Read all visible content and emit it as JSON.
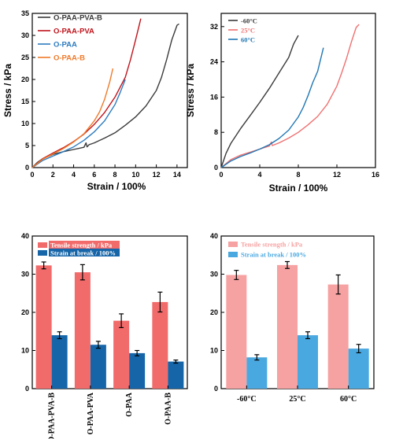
{
  "colors": {
    "black": "#3a3a3a",
    "red": "#c0141c",
    "blue": "#2d7cc0",
    "orange": "#ef7a2a",
    "cold": "#3a3a3a",
    "room": "#f07070",
    "warm": "#1f77b4",
    "bar_red": "#f26b6b",
    "bar_blue_dark": "#1565a8",
    "bar_red_light": "#f7a2a2",
    "bar_blue_light": "#4aa8e0"
  },
  "chart_data": [
    {
      "type": "line",
      "xlabel": "Strain / 100%",
      "ylabel": "Stress / kPa",
      "xlim": [
        0,
        15
      ],
      "ylim": [
        0,
        35
      ],
      "xticks": [
        "0",
        "2",
        "4",
        "6",
        "8",
        "10",
        "12",
        "14"
      ],
      "yticks": [
        "0",
        "5",
        "10",
        "15",
        "20",
        "25",
        "30",
        "35"
      ],
      "legend": "top-left",
      "series": [
        {
          "name": "O-PAA-PVA-B",
          "color": "black",
          "x": [
            0,
            0.5,
            1,
            2,
            3,
            4,
            5,
            5.2,
            5.3,
            5.5,
            6,
            7,
            8,
            9,
            10,
            11,
            12,
            12.5,
            13,
            13.5,
            14,
            14.2
          ],
          "y": [
            0,
            1.2,
            2.0,
            3.0,
            3.6,
            4.1,
            4.6,
            5.6,
            4.7,
            5.2,
            5.6,
            6.7,
            7.9,
            9.6,
            11.5,
            14.0,
            17.5,
            20.5,
            24.5,
            29.0,
            32.3,
            32.6
          ]
        },
        {
          "name": "O-PAA-PVA",
          "color": "red",
          "x": [
            0,
            1,
            2,
            3,
            4,
            5,
            6,
            7,
            8,
            9,
            9.5,
            10,
            10.5
          ],
          "y": [
            0,
            2.0,
            3.3,
            4.5,
            5.9,
            7.6,
            9.8,
            12.5,
            16.0,
            20.5,
            24.5,
            29.0,
            33.8
          ]
        },
        {
          "name": "O-PAA",
          "color": "blue",
          "x": [
            0,
            1,
            2,
            3,
            4,
            5,
            6,
            7,
            8,
            8.5,
            9
          ],
          "y": [
            0,
            1.6,
            2.6,
            3.6,
            4.7,
            6.2,
            8.1,
            10.6,
            14.3,
            17.0,
            20.0
          ]
        },
        {
          "name": "O-PAA-B",
          "color": "orange",
          "x": [
            0,
            1,
            2,
            3,
            4,
            5,
            6,
            6.5,
            7,
            7.5,
            7.8
          ],
          "y": [
            0,
            1.9,
            3.1,
            4.3,
            5.8,
            7.7,
            10.6,
            12.6,
            15.5,
            19.5,
            22.5
          ]
        }
      ]
    },
    {
      "type": "line",
      "xlabel": "Strain / 100%",
      "ylabel": "Stress / kPa",
      "xlim": [
        0,
        16
      ],
      "ylim": [
        0,
        35
      ],
      "xticks": [
        "0",
        "4",
        "8",
        "12",
        "16"
      ],
      "yticks": [
        "0",
        "8",
        "16",
        "24",
        "32"
      ],
      "legend": "top-left",
      "series": [
        {
          "name": "-60°C",
          "color": "cold",
          "x": [
            0,
            0.5,
            1,
            2,
            3,
            4,
            5,
            6,
            7,
            7.5,
            8
          ],
          "y": [
            0,
            3.2,
            5.5,
            8.8,
            11.8,
            14.8,
            18.0,
            21.5,
            25.0,
            28.0,
            30.0
          ]
        },
        {
          "name": "25°C",
          "color": "room",
          "x": [
            0,
            1,
            2,
            3,
            4,
            5,
            5.2,
            5.3,
            6,
            7,
            8,
            9,
            10,
            11,
            12,
            12.5,
            13,
            13.5,
            14,
            14.3
          ],
          "y": [
            0,
            1.8,
            2.8,
            3.5,
            4.2,
            4.9,
            5.8,
            5.0,
            5.6,
            6.7,
            8.0,
            9.7,
            11.6,
            14.4,
            18.5,
            21.5,
            24.8,
            28.5,
            31.8,
            32.5
          ]
        },
        {
          "name": "60°C",
          "color": "warm",
          "x": [
            0,
            1,
            2,
            3,
            4,
            5,
            6,
            7,
            8,
            8.5,
            9,
            9.5,
            10,
            10.3,
            10.6
          ],
          "y": [
            0,
            1.5,
            2.5,
            3.3,
            4.2,
            5.2,
            6.6,
            8.5,
            11.5,
            13.6,
            16.3,
            19.3,
            21.8,
            24.5,
            27.2
          ]
        }
      ]
    },
    {
      "type": "bar",
      "categories": [
        "O-PAA-PVA-B",
        "O-PAA-PVA",
        "O-PAA",
        "O-PAA-B"
      ],
      "ylim": [
        0,
        40
      ],
      "yticks": [
        "0",
        "10",
        "20",
        "30",
        "40"
      ],
      "legend": "top-left",
      "series": [
        {
          "name": "Tensile strength / kPa",
          "color": "bar_red",
          "values": [
            32.3,
            30.5,
            17.8,
            22.7
          ],
          "errors": [
            0.9,
            2.0,
            1.8,
            2.6
          ]
        },
        {
          "name": "Strain at break / 100%",
          "color": "bar_blue_dark",
          "values": [
            14.0,
            11.5,
            9.3,
            7.1
          ],
          "errors": [
            0.9,
            0.9,
            0.7,
            0.4
          ]
        }
      ]
    },
    {
      "type": "bar",
      "categories": [
        "-60°C",
        "25°C",
        "60°C"
      ],
      "ylim": [
        0,
        40
      ],
      "yticks": [
        "0",
        "10",
        "20",
        "30",
        "40"
      ],
      "legend": "top-left",
      "series": [
        {
          "name": "Tensile strength / kPa",
          "color": "bar_red_light",
          "values": [
            29.8,
            32.4,
            27.3
          ],
          "errors": [
            1.2,
            0.9,
            2.5
          ]
        },
        {
          "name": "Strain at break / 100%",
          "color": "bar_blue_light",
          "values": [
            8.2,
            14.0,
            10.5
          ],
          "errors": [
            0.7,
            0.9,
            1.1
          ]
        }
      ]
    }
  ]
}
